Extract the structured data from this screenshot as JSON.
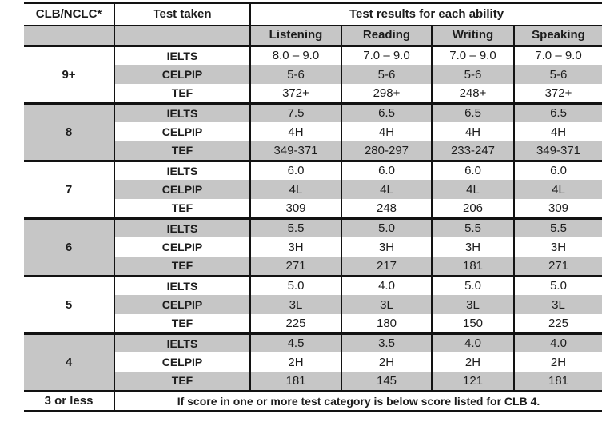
{
  "table": {
    "title_colors": {
      "shade_gray": "#c6c6c6",
      "line_black": "#121212",
      "text": "#1c1c1c"
    },
    "header": {
      "col1": "CLB/NCLC*",
      "col2": "Test taken",
      "results_header": "Test results for each ability",
      "abilities": [
        "Listening",
        "Reading",
        "Writing",
        "Speaking"
      ]
    },
    "groups": [
      {
        "level": "9+",
        "rows": [
          {
            "test": "IELTS",
            "values": [
              "8.0 – 9.0",
              "7.0 – 9.0",
              "7.0 – 9.0",
              "7.0 – 9.0"
            ]
          },
          {
            "test": "CELPIP",
            "values": [
              "5-6",
              "5-6",
              "5-6",
              "5-6"
            ]
          },
          {
            "test": "TEF",
            "values": [
              "372+",
              "298+",
              "248+",
              "372+"
            ]
          }
        ]
      },
      {
        "level": "8",
        "rows": [
          {
            "test": "IELTS",
            "values": [
              "7.5",
              "6.5",
              "6.5",
              "6.5"
            ]
          },
          {
            "test": "CELPIP",
            "values": [
              "4H",
              "4H",
              "4H",
              "4H"
            ]
          },
          {
            "test": "TEF",
            "values": [
              "349-371",
              "280-297",
              "233-247",
              "349-371"
            ]
          }
        ]
      },
      {
        "level": "7",
        "rows": [
          {
            "test": "IELTS",
            "values": [
              "6.0",
              "6.0",
              "6.0",
              "6.0"
            ]
          },
          {
            "test": "CELPIP",
            "values": [
              "4L",
              "4L",
              "4L",
              "4L"
            ]
          },
          {
            "test": "TEF",
            "values": [
              "309",
              "248",
              "206",
              "309"
            ]
          }
        ]
      },
      {
        "level": "6",
        "rows": [
          {
            "test": "IELTS",
            "values": [
              "5.5",
              "5.0",
              "5.5",
              "5.5"
            ]
          },
          {
            "test": "CELPIP",
            "values": [
              "3H",
              "3H",
              "3H",
              "3H"
            ]
          },
          {
            "test": "TEF",
            "values": [
              "271",
              "217",
              "181",
              "271"
            ]
          }
        ]
      },
      {
        "level": "5",
        "rows": [
          {
            "test": "IELTS",
            "values": [
              "5.0",
              "4.0",
              "5.0",
              "5.0"
            ]
          },
          {
            "test": "CELPIP",
            "values": [
              "3L",
              "3L",
              "3L",
              "3L"
            ]
          },
          {
            "test": "TEF",
            "values": [
              "225",
              "180",
              "150",
              "225"
            ]
          }
        ]
      },
      {
        "level": "4",
        "rows": [
          {
            "test": "IELTS",
            "values": [
              "4.5",
              "3.5",
              "4.0",
              "4.0"
            ]
          },
          {
            "test": "CELPIP",
            "values": [
              "2H",
              "2H",
              "2H",
              "2H"
            ]
          },
          {
            "test": "TEF",
            "values": [
              "181",
              "145",
              "121",
              "181"
            ]
          }
        ]
      }
    ],
    "footer": {
      "level": "3 or less",
      "note": "If score in one or more test category is below score listed for CLB 4."
    }
  }
}
